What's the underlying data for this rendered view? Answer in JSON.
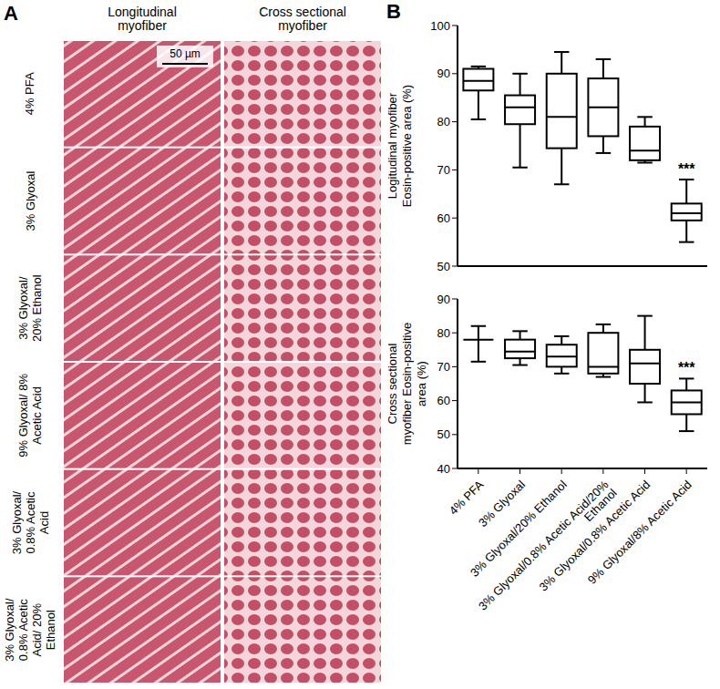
{
  "panel_a": {
    "letter": "A",
    "column_heads": [
      "Longitudinal myofiber",
      "Cross sectional myofiber"
    ],
    "row_labels": [
      "4% PFA",
      "3% Glyoxal",
      "3% Glyoxal/ 20% Ethanol",
      "9% Glyoxal/ 8% Acetic Acid",
      "3% Glyoxal/ 0.8% Acetic Acid",
      "3% Glyoxal/ 0.8% Acetic Acid/ 20% Ethanol"
    ],
    "scale_bar": "50 µm"
  },
  "panel_b": {
    "letter": "B"
  },
  "chart_data": [
    {
      "type": "box",
      "y_label": "Logitudinal myofiber Eosin-positive area (%)",
      "categories": [
        "4% PFA",
        "3% Glyoxal",
        "3% Glyoxal/20% Ethanol",
        "3% Glyoxal/0.8% Acetic Acid/20% Ethanol",
        "3% Glyoxal/0.8% Acetic Acid",
        "9% Glyoxal/8% Acetic Acid"
      ],
      "boxes": [
        {
          "min": 80.5,
          "q1": 86.5,
          "median": 88.5,
          "q3": 91,
          "max": 91.5
        },
        {
          "min": 70.5,
          "q1": 79.5,
          "median": 83,
          "q3": 85.5,
          "max": 90
        },
        {
          "min": 67,
          "q1": 74.5,
          "median": 81,
          "q3": 90,
          "max": 94.5
        },
        {
          "min": 73.5,
          "q1": 77,
          "median": 83,
          "q3": 89,
          "max": 93
        },
        {
          "min": 71.5,
          "q1": 72,
          "median": 74,
          "q3": 79,
          "max": 81
        },
        {
          "min": 55,
          "q1": 59.5,
          "median": 61,
          "q3": 63,
          "max": 68
        }
      ],
      "annotations": [
        {
          "category": "9% Glyoxal/8% Acetic Acid",
          "text": "***"
        }
      ],
      "ylim": [
        50,
        100
      ],
      "yticks": [
        50,
        60,
        70,
        80,
        90,
        100
      ],
      "grid": false,
      "tick_labels": "y",
      "color": "#000000"
    },
    {
      "type": "box",
      "y_label": "Cross sectional myofiber Eosin-positive area (%)",
      "categories": [
        "4% PFA",
        "3% Glyoxal",
        "3% Glyoxal/20% Ethanol",
        "3% Glyoxal/0.8% Acetic Acid/20% Ethanol",
        "3% Glyoxal/0.8% Acetic Acid",
        "9% Glyoxal/8% Acetic Acid"
      ],
      "boxes": [
        {
          "min": 71.5,
          "q1": 78,
          "median": 78,
          "q3": 78,
          "max": 82
        },
        {
          "min": 70.5,
          "q1": 72.5,
          "median": 74.5,
          "q3": 78,
          "max": 80.5
        },
        {
          "min": 68,
          "q1": 70,
          "median": 73,
          "q3": 76.5,
          "max": 79
        },
        {
          "min": 67,
          "q1": 68,
          "median": 70,
          "q3": 80,
          "max": 82.5
        },
        {
          "min": 59.5,
          "q1": 65,
          "median": 71,
          "q3": 75,
          "max": 85
        },
        {
          "min": 51,
          "q1": 56,
          "median": 59.5,
          "q3": 63,
          "max": 66.5
        }
      ],
      "annotations": [
        {
          "category": "9% Glyoxal/8% Acetic Acid",
          "text": "***"
        }
      ],
      "ylim": [
        40,
        90
      ],
      "yticks": [
        40,
        50,
        60,
        70,
        80,
        90
      ],
      "grid": false,
      "color": "#000000"
    }
  ]
}
